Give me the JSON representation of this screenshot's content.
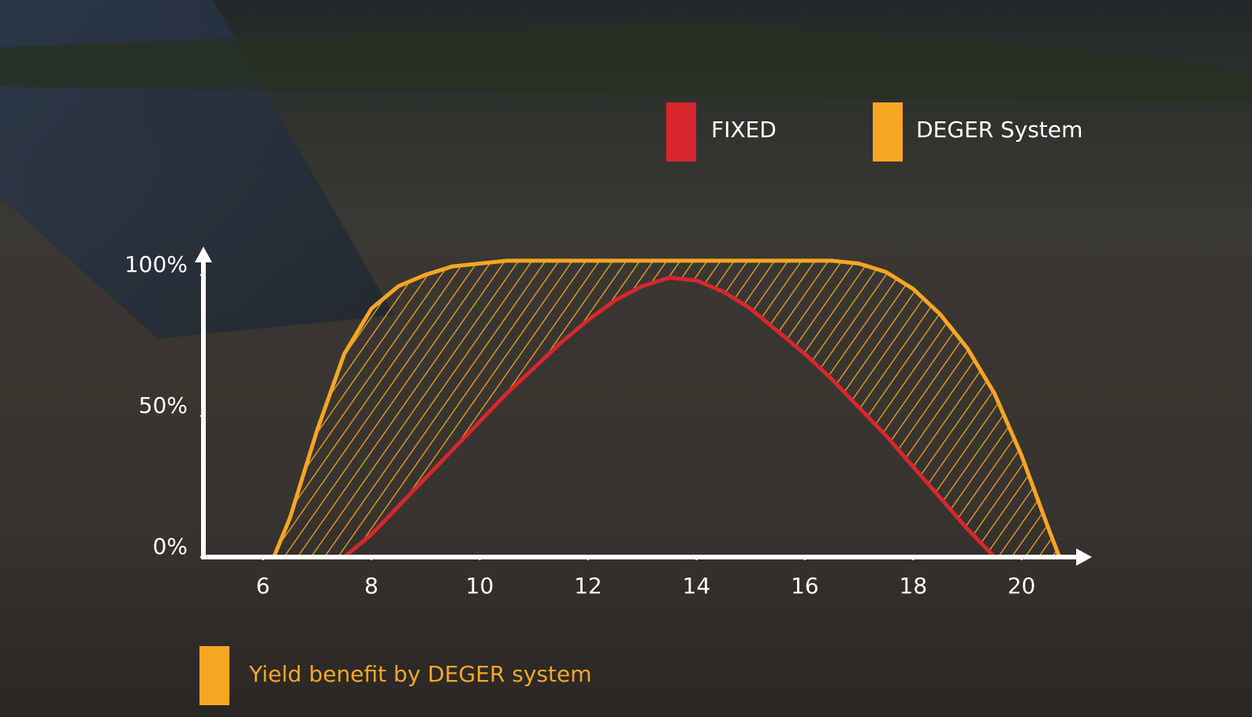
{
  "chart_data": {
    "type": "line",
    "x": [
      6.2,
      6.5,
      7,
      7.5,
      8,
      8.5,
      9,
      9.5,
      10,
      10.5,
      11,
      11.5,
      12,
      12.5,
      13,
      13.5,
      14,
      14.5,
      15,
      15.5,
      16,
      16.5,
      17,
      17.5,
      18,
      18.5,
      19,
      19.5,
      20,
      20.5,
      20.7
    ],
    "series": [
      {
        "name": "FIXED",
        "color": "#d7262c",
        "values": [
          null,
          null,
          null,
          0,
          8,
          18,
          28,
          38,
          48,
          58,
          67,
          76,
          84,
          91,
          96,
          99,
          98,
          94,
          88,
          80,
          72,
          63,
          53,
          43,
          32,
          21,
          10,
          0,
          null,
          null,
          null
        ]
      },
      {
        "name": "DEGER System",
        "color": "#f6a623",
        "values": [
          0,
          14,
          45,
          72,
          88,
          96,
          100,
          103,
          104,
          105,
          105,
          105,
          105,
          105,
          105,
          105,
          105,
          105,
          105,
          105,
          105,
          105,
          104,
          101,
          95,
          86,
          74,
          58,
          36,
          10,
          0
        ]
      }
    ],
    "xlim": [
      4.9,
      21.3
    ],
    "xticks": [
      6,
      8,
      10,
      12,
      14,
      16,
      18,
      20
    ],
    "ylim": [
      0,
      110
    ],
    "yticks": [
      {
        "value": 0,
        "label": "0%"
      },
      {
        "value": 50,
        "label": "50%"
      },
      {
        "value": 100,
        "label": "100%"
      }
    ],
    "legend": "top-right",
    "annotation": "Yield benefit by DEGER system"
  }
}
